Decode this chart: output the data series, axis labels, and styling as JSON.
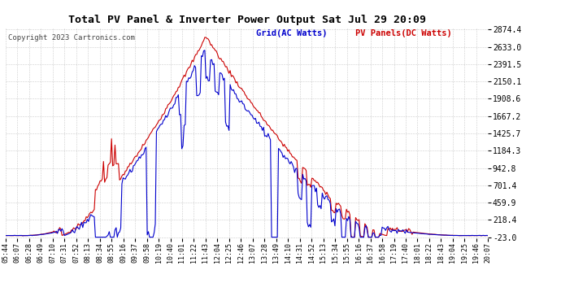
{
  "title": "Total PV Panel & Inverter Power Output Sat Jul 29 20:09",
  "copyright": "Copyright 2023 Cartronics.com",
  "legend_blue": "Grid(AC Watts)",
  "legend_red": "PV Panels(DC Watts)",
  "yticks": [
    2874.4,
    2633.0,
    2391.5,
    2150.1,
    1908.6,
    1667.2,
    1425.7,
    1184.3,
    942.8,
    701.4,
    459.9,
    218.4,
    -23.0
  ],
  "ymin": -23.0,
  "ymax": 2874.4,
  "xtick_labels": [
    "05:44",
    "06:07",
    "06:28",
    "06:49",
    "07:10",
    "07:31",
    "07:52",
    "08:13",
    "08:34",
    "08:55",
    "09:16",
    "09:37",
    "09:58",
    "10:19",
    "10:40",
    "11:01",
    "11:22",
    "11:43",
    "12:04",
    "12:25",
    "12:46",
    "13:07",
    "13:28",
    "13:49",
    "14:10",
    "14:31",
    "14:52",
    "15:13",
    "15:34",
    "15:55",
    "16:16",
    "16:37",
    "16:58",
    "17:19",
    "17:40",
    "18:01",
    "18:22",
    "18:43",
    "19:04",
    "19:25",
    "19:46",
    "20:07"
  ],
  "blue_color": "#0000cc",
  "red_color": "#cc0000",
  "bg_color": "#ffffff",
  "grid_color": "#aaaaaa",
  "title_color": "#000000",
  "copyright_color": "#444444"
}
